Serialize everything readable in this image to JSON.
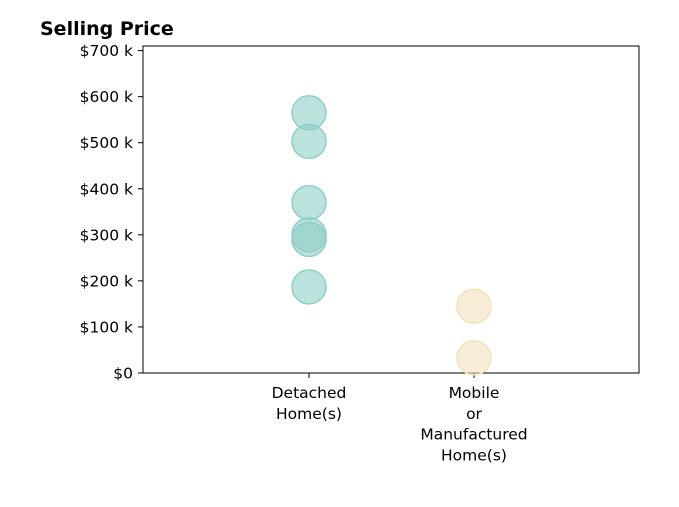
{
  "chart_data": {
    "type": "scatter",
    "title": "Selling Price",
    "categories": [
      "Detached Home(s)",
      "Mobile or Manufactured Home(s)"
    ],
    "category_label_lines": [
      [
        "Detached",
        "Home(s)"
      ],
      [
        "Mobile",
        "or",
        "Manufactured",
        "Home(s)"
      ]
    ],
    "y_ticks": [
      0,
      100000,
      200000,
      300000,
      400000,
      500000,
      600000,
      700000
    ],
    "y_tick_labels": [
      "$0",
      "$100 k",
      "$200 k",
      "$300 k",
      "$400 k",
      "$500 k",
      "$600 k",
      "$700 k"
    ],
    "ylim": [
      0,
      710000
    ],
    "grid": false,
    "series": [
      {
        "category": "Detached Home(s)",
        "color": "#8fcfc6",
        "values": [
          565000,
          503000,
          370000,
          300000,
          290000,
          187000
        ]
      },
      {
        "category": "Mobile or Manufactured Home(s)",
        "color": "#f4e2bd",
        "values": [
          145000,
          33000
        ]
      }
    ]
  }
}
